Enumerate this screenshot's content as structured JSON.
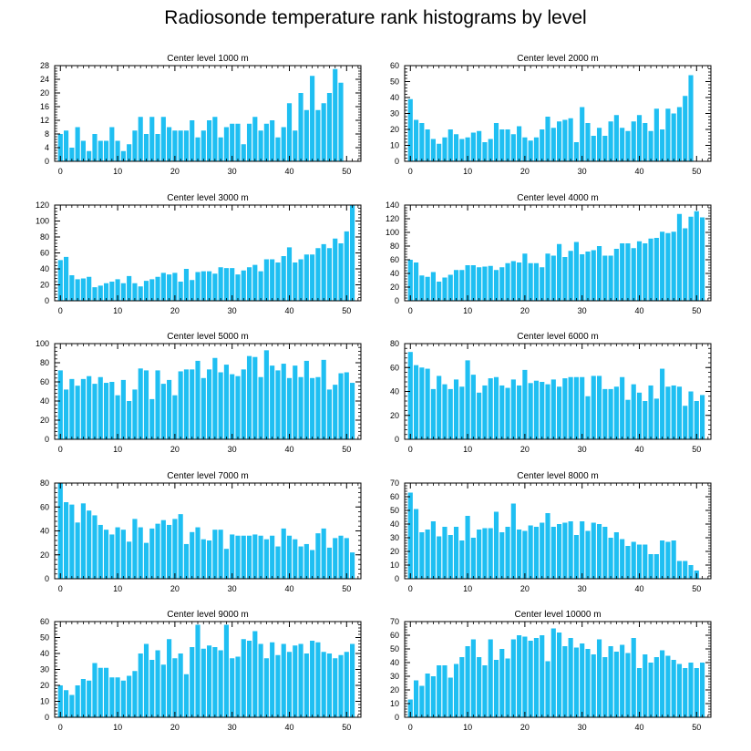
{
  "title": "Radiosonde temperature rank histograms by level",
  "colors": {
    "bar": "#1fbff2",
    "axis": "#000000",
    "background": "#ffffff"
  },
  "chart_data": [
    {
      "type": "bar",
      "title": "Center level 1000 m",
      "ylim": [
        0,
        28
      ],
      "yticks": [
        0,
        4,
        8,
        12,
        16,
        20,
        24,
        28
      ],
      "xticks": [
        0,
        10,
        20,
        30,
        40,
        50
      ],
      "x": [
        0,
        1,
        2,
        3,
        4,
        5,
        6,
        7,
        8,
        9,
        10,
        11,
        12,
        13,
        14,
        15,
        16,
        17,
        18,
        19,
        20,
        21,
        22,
        23,
        24,
        25,
        26,
        27,
        28,
        29,
        30,
        31,
        32,
        33,
        34,
        35,
        36,
        37,
        38,
        39,
        40,
        41,
        42,
        43,
        44,
        45,
        46,
        47,
        48,
        49,
        50,
        51
      ],
      "values": [
        8,
        9,
        4,
        10,
        6,
        3,
        8,
        6,
        6,
        10,
        6,
        3,
        5,
        9,
        13,
        8,
        13,
        8,
        13,
        10,
        9,
        9,
        9,
        12,
        7,
        9,
        12,
        13,
        7,
        10,
        11,
        11,
        5,
        11,
        13,
        9,
        11,
        12,
        7,
        10,
        17,
        9,
        20,
        15,
        25,
        15,
        17,
        20,
        27,
        23,
        0,
        0
      ]
    },
    {
      "type": "bar",
      "title": "Center level 2000 m",
      "ylim": [
        0,
        60
      ],
      "yticks": [
        0,
        10,
        20,
        30,
        40,
        50,
        60
      ],
      "xticks": [
        0,
        10,
        20,
        30,
        40,
        50
      ],
      "x": [
        0,
        1,
        2,
        3,
        4,
        5,
        6,
        7,
        8,
        9,
        10,
        11,
        12,
        13,
        14,
        15,
        16,
        17,
        18,
        19,
        20,
        21,
        22,
        23,
        24,
        25,
        26,
        27,
        28,
        29,
        30,
        31,
        32,
        33,
        34,
        35,
        36,
        37,
        38,
        39,
        40,
        41,
        42,
        43,
        44,
        45,
        46,
        47,
        48,
        49,
        50,
        51
      ],
      "values": [
        39,
        26,
        24,
        20,
        14,
        11,
        15,
        20,
        17,
        14,
        15,
        18,
        19,
        12,
        14,
        24,
        20,
        20,
        17,
        22,
        15,
        13,
        15,
        20,
        28,
        21,
        25,
        26,
        27,
        12,
        34,
        24,
        16,
        21,
        16,
        25,
        29,
        21,
        19,
        25,
        29,
        24,
        19,
        33,
        20,
        33,
        30,
        34,
        41,
        54,
        0,
        0
      ]
    },
    {
      "type": "bar",
      "title": "Center level 3000 m",
      "ylim": [
        0,
        120
      ],
      "yticks": [
        0,
        20,
        40,
        60,
        80,
        100,
        120
      ],
      "xticks": [
        0,
        10,
        20,
        30,
        40,
        50
      ],
      "x": [
        0,
        1,
        2,
        3,
        4,
        5,
        6,
        7,
        8,
        9,
        10,
        11,
        12,
        13,
        14,
        15,
        16,
        17,
        18,
        19,
        20,
        21,
        22,
        23,
        24,
        25,
        26,
        27,
        28,
        29,
        30,
        31,
        32,
        33,
        34,
        35,
        36,
        37,
        38,
        39,
        40,
        41,
        42,
        43,
        44,
        45,
        46,
        47,
        48,
        49,
        50,
        51
      ],
      "values": [
        51,
        55,
        32,
        27,
        28,
        30,
        17,
        19,
        22,
        24,
        27,
        22,
        31,
        22,
        18,
        25,
        27,
        30,
        35,
        33,
        35,
        24,
        40,
        26,
        36,
        37,
        37,
        34,
        42,
        41,
        41,
        33,
        38,
        42,
        45,
        37,
        52,
        52,
        48,
        56,
        67,
        48,
        52,
        58,
        58,
        66,
        71,
        66,
        78,
        72,
        87,
        120
      ]
    },
    {
      "type": "bar",
      "title": "Center level 4000 m",
      "ylim": [
        0,
        140
      ],
      "yticks": [
        0,
        20,
        40,
        60,
        80,
        100,
        120,
        140
      ],
      "xticks": [
        0,
        10,
        20,
        30,
        40,
        50
      ],
      "x": [
        0,
        1,
        2,
        3,
        4,
        5,
        6,
        7,
        8,
        9,
        10,
        11,
        12,
        13,
        14,
        15,
        16,
        17,
        18,
        19,
        20,
        21,
        22,
        23,
        24,
        25,
        26,
        27,
        28,
        29,
        30,
        31,
        32,
        33,
        34,
        35,
        36,
        37,
        38,
        39,
        40,
        41,
        42,
        43,
        44,
        45,
        46,
        47,
        48,
        49,
        50,
        51
      ],
      "values": [
        60,
        56,
        37,
        35,
        42,
        28,
        34,
        38,
        45,
        45,
        52,
        52,
        49,
        50,
        51,
        45,
        49,
        55,
        58,
        56,
        69,
        55,
        55,
        49,
        69,
        66,
        83,
        64,
        73,
        86,
        68,
        72,
        74,
        80,
        66,
        66,
        76,
        84,
        84,
        77,
        87,
        84,
        91,
        92,
        101,
        99,
        101,
        127,
        106,
        123,
        131,
        122
      ]
    },
    {
      "type": "bar",
      "title": "Center level 5000 m",
      "ylim": [
        0,
        100
      ],
      "yticks": [
        0,
        20,
        40,
        60,
        80,
        100
      ],
      "xticks": [
        0,
        10,
        20,
        30,
        40,
        50
      ],
      "x": [
        0,
        1,
        2,
        3,
        4,
        5,
        6,
        7,
        8,
        9,
        10,
        11,
        12,
        13,
        14,
        15,
        16,
        17,
        18,
        19,
        20,
        21,
        22,
        23,
        24,
        25,
        26,
        27,
        28,
        29,
        30,
        31,
        32,
        33,
        34,
        35,
        36,
        37,
        38,
        39,
        40,
        41,
        42,
        43,
        44,
        45,
        46,
        47,
        48,
        49,
        50,
        51
      ],
      "values": [
        72,
        52,
        63,
        56,
        63,
        66,
        58,
        65,
        59,
        60,
        46,
        62,
        40,
        52,
        74,
        72,
        42,
        72,
        58,
        62,
        46,
        71,
        73,
        73,
        82,
        64,
        73,
        85,
        70,
        78,
        68,
        66,
        73,
        87,
        86,
        65,
        93,
        77,
        72,
        79,
        64,
        77,
        65,
        82,
        64,
        65,
        83,
        52,
        57,
        69,
        70,
        59
      ]
    },
    {
      "type": "bar",
      "title": "Center level 6000 m",
      "ylim": [
        0,
        80
      ],
      "yticks": [
        0,
        20,
        40,
        60,
        80
      ],
      "xticks": [
        0,
        10,
        20,
        30,
        40,
        50
      ],
      "x": [
        0,
        1,
        2,
        3,
        4,
        5,
        6,
        7,
        8,
        9,
        10,
        11,
        12,
        13,
        14,
        15,
        16,
        17,
        18,
        19,
        20,
        21,
        22,
        23,
        24,
        25,
        26,
        27,
        28,
        29,
        30,
        31,
        32,
        33,
        34,
        35,
        36,
        37,
        38,
        39,
        40,
        41,
        42,
        43,
        44,
        45,
        46,
        47,
        48,
        49,
        50,
        51
      ],
      "values": [
        73,
        62,
        60,
        59,
        42,
        53,
        46,
        42,
        50,
        44,
        66,
        54,
        39,
        45,
        51,
        52,
        45,
        43,
        50,
        45,
        58,
        47,
        49,
        48,
        46,
        50,
        44,
        51,
        52,
        52,
        52,
        36,
        53,
        53,
        42,
        42,
        44,
        52,
        33,
        46,
        39,
        32,
        45,
        34,
        59,
        44,
        45,
        44,
        28,
        40,
        32,
        37
      ]
    },
    {
      "type": "bar",
      "title": "Center level 7000 m",
      "ylim": [
        0,
        80
      ],
      "yticks": [
        0,
        20,
        40,
        60,
        80
      ],
      "xticks": [
        0,
        10,
        20,
        30,
        40,
        50
      ],
      "x": [
        0,
        1,
        2,
        3,
        4,
        5,
        6,
        7,
        8,
        9,
        10,
        11,
        12,
        13,
        14,
        15,
        16,
        17,
        18,
        19,
        20,
        21,
        22,
        23,
        24,
        25,
        26,
        27,
        28,
        29,
        30,
        31,
        32,
        33,
        34,
        35,
        36,
        37,
        38,
        39,
        40,
        41,
        42,
        43,
        44,
        45,
        46,
        47,
        48,
        49,
        50,
        51
      ],
      "values": [
        80,
        64,
        62,
        47,
        63,
        57,
        53,
        45,
        41,
        37,
        43,
        41,
        31,
        50,
        43,
        30,
        42,
        46,
        49,
        45,
        50,
        54,
        29,
        39,
        43,
        33,
        32,
        41,
        41,
        25,
        37,
        36,
        36,
        36,
        37,
        36,
        33,
        36,
        27,
        42,
        36,
        33,
        27,
        29,
        24,
        38,
        42,
        26,
        34,
        36,
        34,
        22
      ]
    },
    {
      "type": "bar",
      "title": "Center level 8000 m",
      "ylim": [
        0,
        70
      ],
      "yticks": [
        0,
        10,
        20,
        30,
        40,
        50,
        60,
        70
      ],
      "xticks": [
        0,
        10,
        20,
        30,
        40,
        50
      ],
      "x": [
        0,
        1,
        2,
        3,
        4,
        5,
        6,
        7,
        8,
        9,
        10,
        11,
        12,
        13,
        14,
        15,
        16,
        17,
        18,
        19,
        20,
        21,
        22,
        23,
        24,
        25,
        26,
        27,
        28,
        29,
        30,
        31,
        32,
        33,
        34,
        35,
        36,
        37,
        38,
        39,
        40,
        41,
        42,
        43,
        44,
        45,
        46,
        47,
        48,
        49,
        50,
        51
      ],
      "values": [
        63,
        51,
        34,
        36,
        42,
        31,
        38,
        32,
        38,
        28,
        46,
        30,
        36,
        37,
        37,
        49,
        34,
        38,
        55,
        36,
        35,
        39,
        38,
        41,
        48,
        38,
        40,
        41,
        42,
        32,
        42,
        35,
        41,
        40,
        38,
        30,
        34,
        29,
        24,
        27,
        25,
        25,
        18,
        18,
        28,
        27,
        28,
        13,
        13,
        10,
        6,
        0
      ]
    },
    {
      "type": "bar",
      "title": "Center level 9000 m",
      "ylim": [
        0,
        60
      ],
      "yticks": [
        0,
        10,
        20,
        30,
        40,
        50,
        60
      ],
      "xticks": [
        0,
        10,
        20,
        30,
        40,
        50
      ],
      "x": [
        0,
        1,
        2,
        3,
        4,
        5,
        6,
        7,
        8,
        9,
        10,
        11,
        12,
        13,
        14,
        15,
        16,
        17,
        18,
        19,
        20,
        21,
        22,
        23,
        24,
        25,
        26,
        27,
        28,
        29,
        30,
        31,
        32,
        33,
        34,
        35,
        36,
        37,
        38,
        39,
        40,
        41,
        42,
        43,
        44,
        45,
        46,
        47,
        48,
        49,
        50,
        51
      ],
      "values": [
        20,
        17,
        14,
        20,
        24,
        23,
        34,
        31,
        31,
        25,
        25,
        23,
        26,
        29,
        40,
        46,
        36,
        42,
        33,
        49,
        37,
        40,
        27,
        44,
        58,
        43,
        45,
        44,
        42,
        58,
        37,
        38,
        49,
        48,
        54,
        46,
        37,
        47,
        39,
        46,
        41,
        45,
        46,
        40,
        48,
        47,
        41,
        40,
        37,
        39,
        41,
        46
      ]
    },
    {
      "type": "bar",
      "title": "Center level 10000 m",
      "ylim": [
        0,
        70
      ],
      "yticks": [
        0,
        10,
        20,
        30,
        40,
        50,
        60,
        70
      ],
      "xticks": [
        0,
        10,
        20,
        30,
        40,
        50
      ],
      "x": [
        0,
        1,
        2,
        3,
        4,
        5,
        6,
        7,
        8,
        9,
        10,
        11,
        12,
        13,
        14,
        15,
        16,
        17,
        18,
        19,
        20,
        21,
        22,
        23,
        24,
        25,
        26,
        27,
        28,
        29,
        30,
        31,
        32,
        33,
        34,
        35,
        36,
        37,
        38,
        39,
        40,
        41,
        42,
        43,
        44,
        45,
        46,
        47,
        48,
        49,
        50,
        51
      ],
      "values": [
        13,
        27,
        23,
        32,
        30,
        38,
        38,
        29,
        39,
        44,
        52,
        57,
        44,
        38,
        57,
        42,
        50,
        43,
        57,
        60,
        59,
        56,
        58,
        60,
        41,
        65,
        62,
        52,
        58,
        51,
        54,
        50,
        46,
        57,
        44,
        52,
        48,
        53,
        47,
        58,
        36,
        46,
        40,
        44,
        49,
        45,
        42,
        39,
        36,
        40,
        36,
        40
      ]
    }
  ]
}
